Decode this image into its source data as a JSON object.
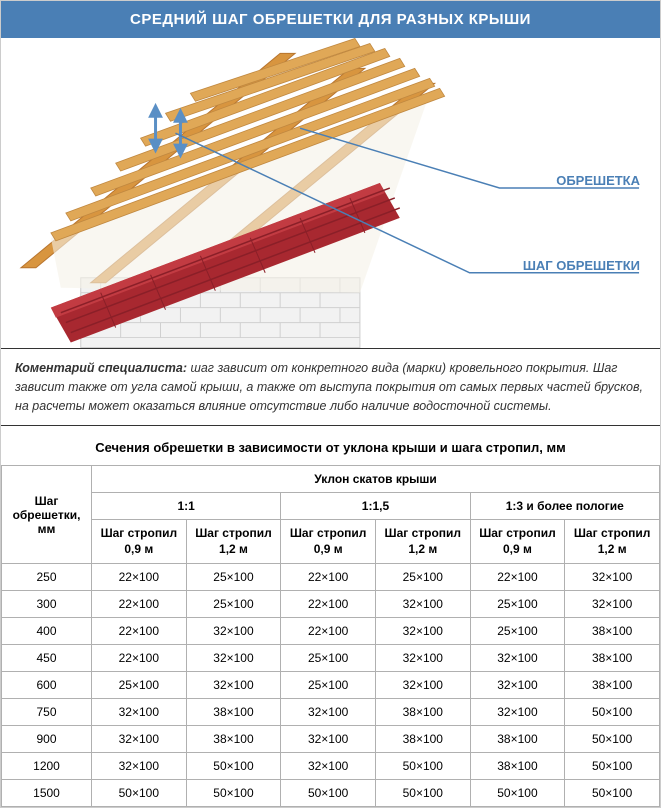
{
  "header": "СРЕДНИЙ ШАГ ОБРЕШЕТКИ ДЛЯ РАЗНЫХ КРЫШИ",
  "labels": {
    "obreshetka": "ОБРЕШЕТКА",
    "shag": "ШАГ ОБРЕШЕТКИ"
  },
  "commentary": {
    "prefix": "Коментарий специалиста:",
    "text": " шаг зависит от конкретного вида (марки) кровельного покрытия. Шаг зависит также от угла самой крыши, а также от выступа покрытия от самых первых частей брусков, на расчеты может оказаться влияние отсутствие либо наличие водосточной системы."
  },
  "table": {
    "title": "Сечения обрешетки в зависимости от уклона крыши и шага стропил, мм",
    "row_header_label": "Шаг обрешетки, мм",
    "super_header": "Уклон скатов крыши",
    "slope_groups": [
      "1:1",
      "1:1,5",
      "1:3 и более пологие"
    ],
    "sub_headers": [
      "Шаг стро­пил 0,9 м",
      "Шаг стро­пил 1,2 м",
      "Шаг стро­пил 0,9 м",
      "Шаг стро­пил 1,2 м",
      "Шаг стро­пил 0,9 м",
      "Шаг стро­пил 1,2 м"
    ],
    "rows": [
      {
        "step": "250",
        "cells": [
          "22×100",
          "25×100",
          "22×100",
          "25×100",
          "22×100",
          "32×100"
        ]
      },
      {
        "step": "300",
        "cells": [
          "22×100",
          "25×100",
          "22×100",
          "32×100",
          "25×100",
          "32×100"
        ]
      },
      {
        "step": "400",
        "cells": [
          "22×100",
          "32×100",
          "22×100",
          "32×100",
          "25×100",
          "38×100"
        ]
      },
      {
        "step": "450",
        "cells": [
          "22×100",
          "32×100",
          "25×100",
          "32×100",
          "32×100",
          "38×100"
        ]
      },
      {
        "step": "600",
        "cells": [
          "25×100",
          "32×100",
          "25×100",
          "32×100",
          "32×100",
          "38×100"
        ]
      },
      {
        "step": "750",
        "cells": [
          "32×100",
          "38×100",
          "32×100",
          "38×100",
          "32×100",
          "50×100"
        ]
      },
      {
        "step": "900",
        "cells": [
          "32×100",
          "38×100",
          "32×100",
          "38×100",
          "38×100",
          "50×100"
        ]
      },
      {
        "step": "1200",
        "cells": [
          "32×100",
          "50×100",
          "32×100",
          "50×100",
          "38×100",
          "50×100"
        ]
      },
      {
        "step": "1500",
        "cells": [
          "50×100",
          "50×100",
          "50×100",
          "50×100",
          "50×100",
          "50×100"
        ]
      }
    ]
  },
  "colors": {
    "header_bg": "#4a7fb5",
    "wood": "#d8953f",
    "wood_dark": "#b8752f",
    "roof": "#a82830",
    "roof_dark": "#8a1f28",
    "wall": "#e8e8e8",
    "membrane": "#f0ece5",
    "arrow": "#5a8fc5"
  }
}
